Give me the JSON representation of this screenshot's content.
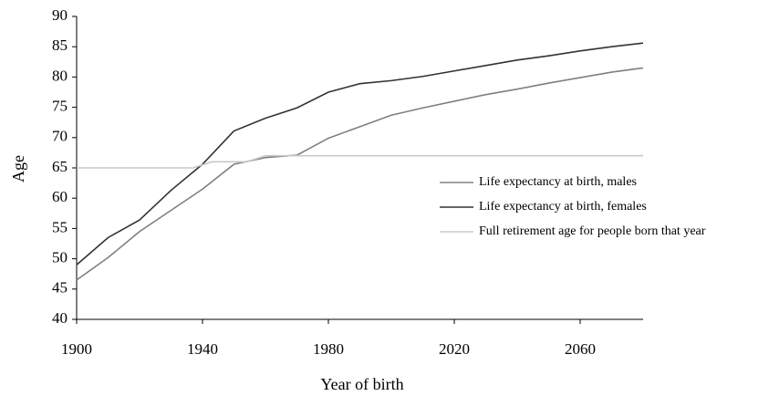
{
  "chart_data": {
    "type": "line",
    "x_label": "Year of birth",
    "y_label": "Age",
    "xlim": [
      1900,
      2080
    ],
    "xticks": [
      1900,
      1940,
      1980,
      2020,
      2060
    ],
    "ylim": [
      40,
      90
    ],
    "yticks": [
      40,
      45,
      50,
      55,
      60,
      65,
      70,
      75,
      80,
      85,
      90
    ],
    "grid": false,
    "legend": "right",
    "series": [
      {
        "name": "Life expectancy at birth, males",
        "color": "#808080",
        "x": [
          1900,
          1910,
          1920,
          1930,
          1940,
          1950,
          1960,
          1970,
          1980,
          1990,
          2000,
          2010,
          2020,
          2030,
          2040,
          2050,
          2060,
          2070,
          2080
        ],
        "values": [
          46.5,
          50.2,
          54.5,
          58,
          61.5,
          65.6,
          66.7,
          67.1,
          69.9,
          71.8,
          73.7,
          74.9,
          76.0,
          77.1,
          78.0,
          79.0,
          79.9,
          80.8,
          81.5
        ]
      },
      {
        "name": "Life expectancy at birth, females",
        "color": "#333333",
        "x": [
          1900,
          1910,
          1920,
          1930,
          1940,
          1950,
          1960,
          1970,
          1980,
          1990,
          2000,
          2010,
          2020,
          2030,
          2040,
          2050,
          2060,
          2070,
          2080
        ],
        "values": [
          49,
          53.5,
          56.4,
          61.3,
          65.6,
          71.1,
          73.2,
          74.9,
          77.5,
          78.9,
          79.4,
          80.1,
          81.0,
          81.9,
          82.8,
          83.5,
          84.3,
          85.0,
          85.6
        ]
      },
      {
        "name": "Full retirement age for people born that year",
        "color": "#c8c8c8",
        "x": [
          1900,
          1937,
          1943,
          1954,
          1960,
          2080
        ],
        "values": [
          65,
          65,
          66,
          66,
          67,
          67
        ]
      }
    ]
  }
}
